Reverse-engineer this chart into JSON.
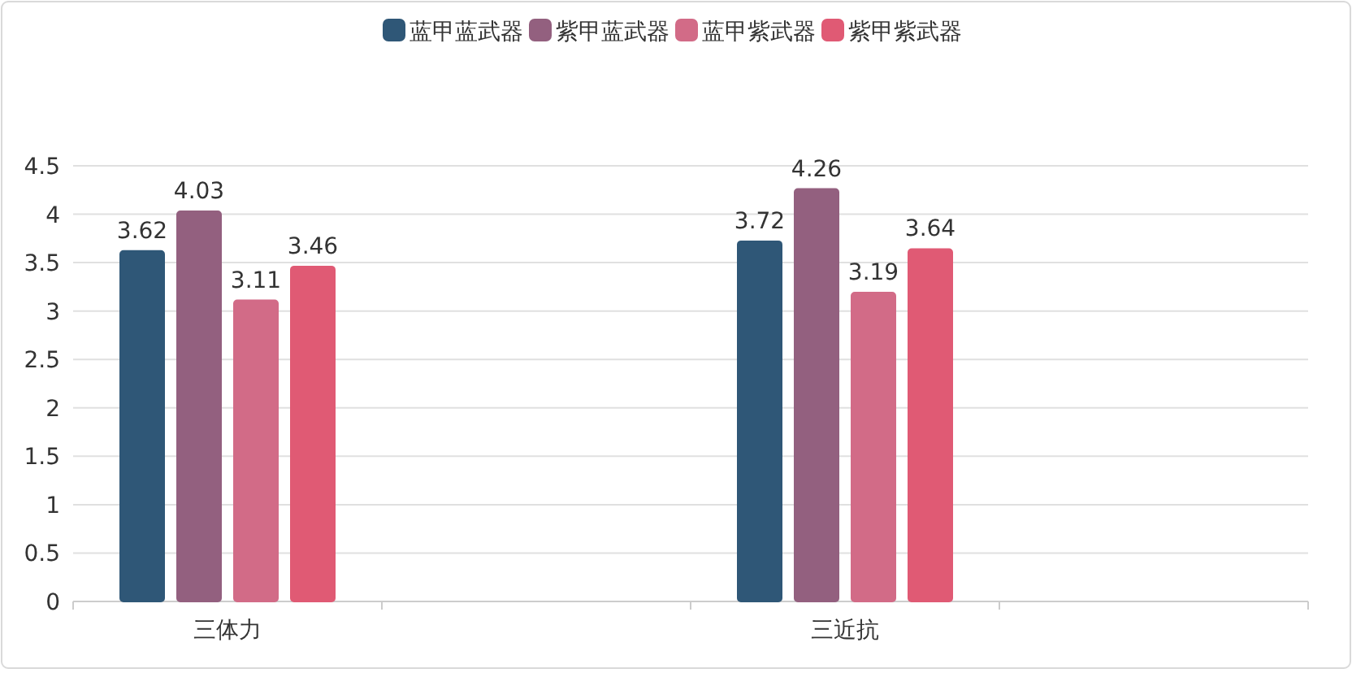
{
  "chart_data": {
    "type": "bar",
    "categories": [
      "三体力",
      null,
      "三近抗",
      null
    ],
    "series": [
      {
        "name": "蓝甲蓝武器",
        "color": "#2f5777",
        "values": [
          3.62,
          null,
          3.72,
          null
        ]
      },
      {
        "name": "紫甲蓝武器",
        "color": "#93607f",
        "values": [
          4.03,
          null,
          4.26,
          null
        ]
      },
      {
        "name": "蓝甲紫武器",
        "color": "#d26b87",
        "values": [
          3.11,
          null,
          3.19,
          null
        ]
      },
      {
        "name": "紫甲紫武器",
        "color": "#e05a74",
        "values": [
          3.46,
          null,
          3.64,
          null
        ]
      }
    ],
    "ylim": [
      0,
      4.5
    ],
    "yticks": [
      0,
      0.5,
      1,
      1.5,
      2,
      2.5,
      3,
      3.5,
      4,
      4.5
    ],
    "grid": "y",
    "legend": "top",
    "data_labels": true
  }
}
